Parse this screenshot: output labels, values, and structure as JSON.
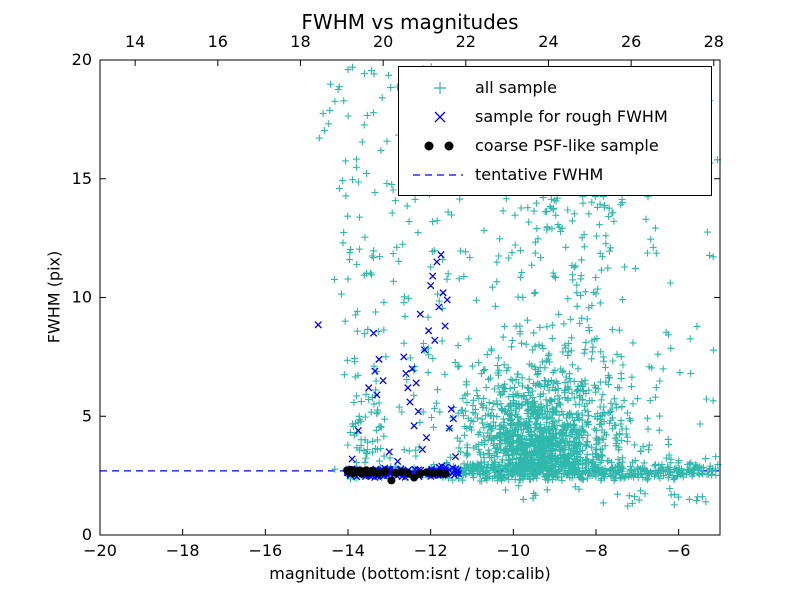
{
  "title": "FWHM vs magnitudes",
  "xlabel": "magnitude (bottom:isnt / top:calib)",
  "ylabel": "FWHM (pix)",
  "legend": {
    "items": [
      {
        "label": "all sample",
        "marker": "plus",
        "color": "#2fb8ab"
      },
      {
        "label": "sample for rough FWHM",
        "marker": "x",
        "color": "#0000ff"
      },
      {
        "label": "coarse PSF-like sample",
        "marker": "dots",
        "color": "#000000"
      },
      {
        "label": "tentative FWHM",
        "marker": "dashed",
        "color": "#0000ff"
      }
    ]
  },
  "chart_data": {
    "type": "scatter",
    "title": "FWHM vs magnitudes",
    "xlabel": "magnitude (bottom:isnt / top:calib)",
    "ylabel": "FWHM (pix)",
    "xlim": [
      -20,
      -5
    ],
    "ylim": [
      0,
      20
    ],
    "x_ticks": [
      -20,
      -18,
      -16,
      -14,
      -12,
      -10,
      -8,
      -6
    ],
    "y_ticks": [
      0,
      5,
      10,
      15,
      20
    ],
    "top_axis": {
      "label": "calib",
      "lim": [
        13.15,
        28.15
      ],
      "ticks": [
        14,
        16,
        18,
        20,
        22,
        24,
        26,
        28
      ]
    },
    "tentative_fwhm": 2.7,
    "grid": false,
    "legend_position": "upper right",
    "seed": 7,
    "series": [
      {
        "name": "tentative FWHM",
        "marker": "hline",
        "color": "#0000ff",
        "y": 2.7,
        "dash": "7 5"
      },
      {
        "name": "all sample",
        "marker": "plus",
        "color": "#2fb8ab",
        "clusters": [
          {
            "kind": "uniform",
            "n": 8,
            "x": [
              -14.7,
              -14.2
            ],
            "y": [
              16.5,
              19.9
            ]
          },
          {
            "kind": "uniform",
            "n": 190,
            "x": [
              -14.35,
              -11.05
            ],
            "y": [
              2.35,
              19.8
            ]
          },
          {
            "kind": "band",
            "n": 90,
            "x": [
              -14.05,
              -11.5
            ],
            "ymean": 2.66,
            "ysd": 0.15,
            "ymin": 2.35,
            "ymax": 3.1
          },
          {
            "kind": "gauss",
            "n": 55,
            "cx": -13.55,
            "cy": 4.3,
            "sx": 0.22,
            "sy": 1.3,
            "ymin": 2.35
          },
          {
            "kind": "uniform",
            "n": 130,
            "x": [
              -11.05,
              -5.05
            ],
            "y": [
              3.3,
              19.7
            ]
          },
          {
            "kind": "gauss",
            "n": 900,
            "cx": -9.25,
            "cy": 4.5,
            "sx": 1.05,
            "sy": 1.6,
            "ymin": 2.3,
            "ymax": 19.9
          },
          {
            "kind": "gauss",
            "n": 400,
            "cx": -9.45,
            "cy": 3.5,
            "sx": 0.6,
            "sy": 0.7,
            "ymin": 2.3
          },
          {
            "kind": "band",
            "n": 430,
            "x": [
              -11.5,
              -5.02
            ],
            "ymean": 2.68,
            "ysd": 0.2,
            "ymin": 2.25,
            "ymax": 3.4
          },
          {
            "kind": "uniform",
            "n": 110,
            "x": [
              -10.4,
              -7.5
            ],
            "y": [
              8.3,
              19.6
            ]
          },
          {
            "kind": "gauss",
            "n": 80,
            "cx": -8.35,
            "cy": 15.3,
            "sx": 0.55,
            "sy": 1.7,
            "ymax": 19.8
          },
          {
            "kind": "uniform",
            "n": 28,
            "x": [
              -10.6,
              -5.1
            ],
            "y": [
              1.2,
              2.25
            ]
          }
        ]
      },
      {
        "name": "sample for rough FWHM",
        "marker": "x",
        "color": "#0000ff",
        "clusters": [
          {
            "kind": "band",
            "n": 135,
            "x": [
              -14.08,
              -11.32
            ],
            "ymean": 2.62,
            "ysd": 0.1,
            "ymin": 2.4,
            "ymax": 2.95
          }
        ],
        "points": [
          [
            -14.72,
            8.85
          ],
          [
            -13.9,
            3.2
          ],
          [
            -13.75,
            4.4
          ],
          [
            -13.5,
            6.2
          ],
          [
            -13.38,
            8.5
          ],
          [
            -13.35,
            6.9
          ],
          [
            -13.3,
            5.9
          ],
          [
            -13.25,
            7.4
          ],
          [
            -13.15,
            6.5
          ],
          [
            -13.0,
            3.5
          ],
          [
            -12.8,
            3.1
          ],
          [
            -12.65,
            7.5
          ],
          [
            -12.6,
            6.8
          ],
          [
            -12.55,
            6.2
          ],
          [
            -12.5,
            5.6
          ],
          [
            -12.45,
            7.0
          ],
          [
            -12.4,
            4.6
          ],
          [
            -12.35,
            6.4
          ],
          [
            -12.3,
            5.2
          ],
          [
            -12.25,
            9.3
          ],
          [
            -12.2,
            3.6
          ],
          [
            -12.15,
            7.8
          ],
          [
            -12.1,
            4.1
          ],
          [
            -12.05,
            8.6
          ],
          [
            -12.0,
            10.5
          ],
          [
            -11.95,
            10.9
          ],
          [
            -11.9,
            8.2
          ],
          [
            -11.85,
            11.5
          ],
          [
            -11.8,
            9.6
          ],
          [
            -11.75,
            11.8
          ],
          [
            -11.7,
            10.2
          ],
          [
            -11.65,
            8.8
          ],
          [
            -11.6,
            9.9
          ],
          [
            -11.55,
            4.5
          ],
          [
            -11.5,
            5.3
          ],
          [
            -11.45,
            4.9
          ],
          [
            -11.4,
            3.3
          ]
        ]
      },
      {
        "name": "coarse PSF-like sample",
        "marker": "dot",
        "color": "#000000",
        "points": [
          [
            -14.02,
            2.72
          ],
          [
            -13.97,
            2.66
          ],
          [
            -13.93,
            2.74
          ],
          [
            -13.88,
            2.6
          ],
          [
            -13.83,
            2.7
          ],
          [
            -13.78,
            2.64
          ],
          [
            -13.72,
            2.72
          ],
          [
            -13.67,
            2.58
          ],
          [
            -13.62,
            2.68
          ],
          [
            -13.56,
            2.73
          ],
          [
            -13.5,
            2.62
          ],
          [
            -13.42,
            2.7
          ],
          [
            -13.35,
            2.65
          ],
          [
            -13.25,
            2.6
          ],
          [
            -13.1,
            2.68
          ],
          [
            -12.95,
            2.3
          ],
          [
            -12.85,
            2.62
          ],
          [
            -12.7,
            2.66
          ],
          [
            -12.55,
            2.6
          ],
          [
            -12.4,
            2.42
          ],
          [
            -12.25,
            2.6
          ],
          [
            -12.1,
            2.64
          ],
          [
            -11.95,
            2.6
          ],
          [
            -11.8,
            2.62
          ],
          [
            -11.65,
            2.58
          ]
        ]
      }
    ]
  }
}
